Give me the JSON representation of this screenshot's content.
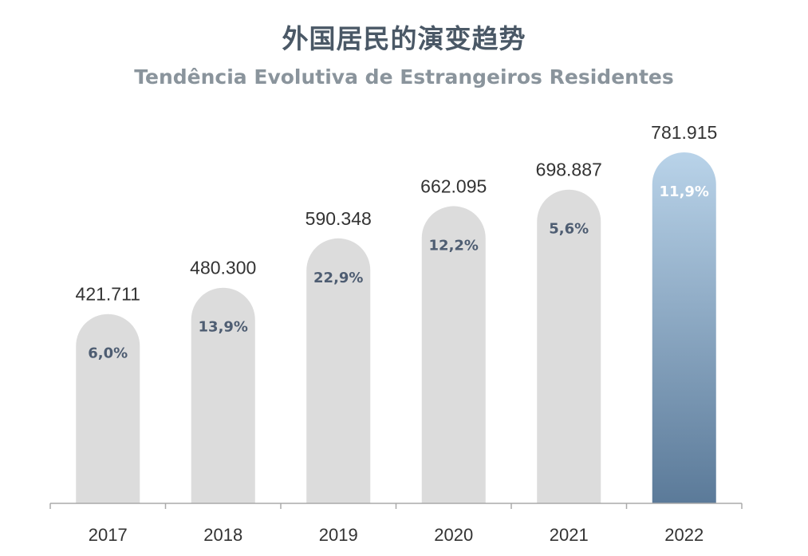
{
  "title_zh": "外国居民的演变趋势",
  "title_pt": "Tendência Evolutiva de Estrangeiros Residentes",
  "colors": {
    "bar": "#dcdcdc",
    "highlight_top": "#b9d3e9",
    "highlight_bottom": "#5b7a99",
    "growth_text": "#4e5d72",
    "growth_text_highlight": "#ffffff",
    "axis": "#aaaaaa"
  },
  "chart_data": {
    "type": "bar",
    "title": "外国居民的演变趋势",
    "subtitle": "Tendência Evolutiva de Estrangeiros Residentes",
    "categories": [
      "2017",
      "2018",
      "2019",
      "2020",
      "2021",
      "2022"
    ],
    "values": [
      421711,
      480300,
      590348,
      662095,
      698887,
      781915
    ],
    "value_labels": [
      "421.711",
      "480.300",
      "590.348",
      "662.095",
      "698.887",
      "781.915"
    ],
    "growth_labels": [
      "6,0%",
      "13,9%",
      "22,9%",
      "12,2%",
      "5,6%",
      "11,9%"
    ],
    "highlight_index": 5,
    "grid": false
  }
}
